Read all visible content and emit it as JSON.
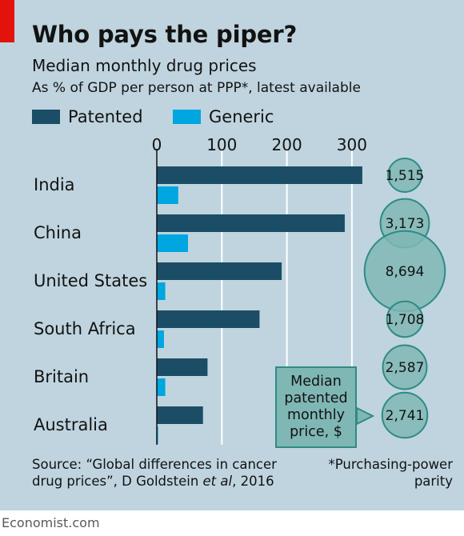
{
  "header": {
    "title": "Who pays the piper?",
    "subtitle": "Median monthly drug prices",
    "note": "As % of GDP per person at PPP*, latest available"
  },
  "legend": [
    {
      "label": "Patented",
      "color": "#1b4d66"
    },
    {
      "label": "Generic",
      "color": "#00a6e0"
    }
  ],
  "chart_data": {
    "type": "bar",
    "orientation": "horizontal",
    "categories": [
      "India",
      "China",
      "United States",
      "South Africa",
      "Britain",
      "Australia"
    ],
    "series": [
      {
        "name": "Patented",
        "values": [
          316,
          289,
          192,
          158,
          78,
          71
        ],
        "color": "#1b4d66"
      },
      {
        "name": "Generic",
        "values": [
          33,
          48,
          13,
          11,
          13,
          2
        ],
        "color": "#00a6e0"
      }
    ],
    "xlim": [
      0,
      320
    ],
    "xticks": [
      0,
      100,
      200,
      300
    ],
    "tick_labels": [
      "0",
      "100",
      "200",
      "300"
    ],
    "grid": "vertical lines at ticks",
    "bubbles": {
      "label": "Median\npatented\nmonthly\nprice, $",
      "values": [
        1515,
        3173,
        8694,
        1708,
        2587,
        2741
      ],
      "value_labels": [
        "1,515",
        "3,173",
        "8,694",
        "1,708",
        "2,587",
        "2,741"
      ],
      "fill": "#7fb7b5",
      "stroke": "#2f8b84"
    }
  },
  "footer": {
    "source_line1": "Source: “Global differences in cancer",
    "source_line2_prefix": "drug prices”, D Goldstein ",
    "source_line2_italic": "et al",
    "source_line2_suffix": ", 2016",
    "footnote_line1": "*Purchasing-power",
    "footnote_line2": "parity",
    "brand": "Economist.com"
  }
}
